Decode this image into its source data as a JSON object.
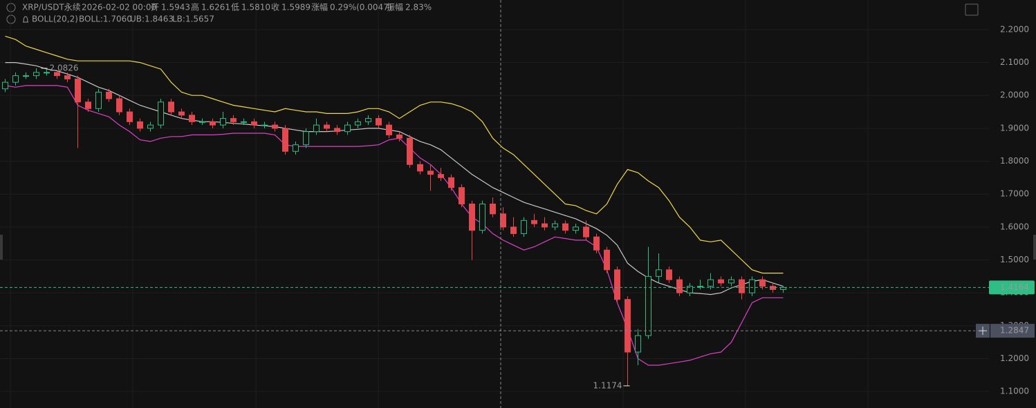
{
  "chart_data": {
    "type": "candlestick",
    "header": {
      "symbol": "XRP/USDT永续",
      "time": "2026-02-02 00:00",
      "fields": [
        {
          "label": "开",
          "value": "1.5943"
        },
        {
          "label": "高",
          "value": "1.6261"
        },
        {
          "label": "低",
          "value": "1.5810"
        },
        {
          "label": "收",
          "value": "1.5989"
        },
        {
          "label": "涨幅",
          "value": "0.29%(0.0047)"
        },
        {
          "label": "振幅",
          "value": "2.83%"
        }
      ]
    },
    "legend": {
      "indicator": "BOLL(20,2)",
      "mid": "BOLL:1.7060",
      "upper": "UB:1.8463",
      "lower": "LB:1.5657"
    },
    "up_color": "#2ebd85",
    "down_color": "#e5484f",
    "open": [
      2.02,
      2.04,
      2.06,
      2.06,
      2.07,
      2.07,
      2.06,
      2.05,
      1.98,
      1.96,
      2.01,
      1.99,
      1.95,
      1.92,
      1.9,
      1.91,
      1.98,
      1.95,
      1.94,
      1.92,
      1.92,
      1.91,
      1.93,
      1.92,
      1.92,
      1.91,
      1.91,
      1.9,
      1.83,
      1.85,
      1.89,
      1.91,
      1.9,
      1.89,
      1.91,
      1.92,
      1.93,
      1.91,
      1.88,
      1.87,
      1.79,
      1.77,
      1.76,
      1.75,
      1.72,
      1.67,
      1.59,
      1.67,
      1.64,
      1.6,
      1.58,
      1.62,
      1.61,
      1.6,
      1.61,
      1.59,
      1.6,
      1.57,
      1.53,
      1.47,
      1.38,
      1.22,
      1.27,
      1.45,
      1.47,
      1.44,
      1.4,
      1.42,
      1.42,
      1.44,
      1.43,
      1.44,
      1.4,
      1.44,
      1.42,
      1.41
    ],
    "high": [
      2.05,
      2.07,
      2.07,
      2.0826,
      2.08,
      2.075,
      2.07,
      2.06,
      1.99,
      2.02,
      2.02,
      2.0,
      1.96,
      1.93,
      1.92,
      1.99,
      1.99,
      1.96,
      1.95,
      1.93,
      1.93,
      1.95,
      1.94,
      1.93,
      1.93,
      1.92,
      1.92,
      1.91,
      1.86,
      1.9,
      1.93,
      1.92,
      1.91,
      1.92,
      1.93,
      1.94,
      1.94,
      1.92,
      1.89,
      1.88,
      1.8,
      1.79,
      1.78,
      1.76,
      1.73,
      1.68,
      1.68,
      1.69,
      1.66,
      1.63,
      1.63,
      1.64,
      1.63,
      1.62,
      1.62,
      1.61,
      1.62,
      1.58,
      1.54,
      1.48,
      1.39,
      1.29,
      1.54,
      1.52,
      1.48,
      1.45,
      1.43,
      1.44,
      1.46,
      1.45,
      1.45,
      1.45,
      1.45,
      1.45,
      1.43,
      1.42
    ],
    "low": [
      2.01,
      2.03,
      2.05,
      2.05,
      2.06,
      2.05,
      2.04,
      1.84,
      1.95,
      1.95,
      1.98,
      1.94,
      1.91,
      1.89,
      1.89,
      1.9,
      1.94,
      1.93,
      1.91,
      1.91,
      1.9,
      1.9,
      1.91,
      1.91,
      1.9,
      1.9,
      1.89,
      1.82,
      1.82,
      1.84,
      1.88,
      1.89,
      1.88,
      1.88,
      1.9,
      1.91,
      1.9,
      1.87,
      1.86,
      1.78,
      1.76,
      1.71,
      1.74,
      1.71,
      1.66,
      1.5,
      1.58,
      1.63,
      1.59,
      1.57,
      1.57,
      1.6,
      1.59,
      1.59,
      1.58,
      1.58,
      1.56,
      1.52,
      1.46,
      1.37,
      1.1174,
      1.18,
      1.26,
      1.43,
      1.43,
      1.39,
      1.39,
      1.41,
      1.41,
      1.42,
      1.42,
      1.38,
      1.39,
      1.41,
      1.4,
      1.4
    ],
    "close": [
      2.04,
      2.06,
      2.06,
      2.07,
      2.07,
      2.06,
      2.05,
      1.98,
      1.96,
      2.01,
      1.99,
      1.95,
      1.92,
      1.9,
      1.91,
      1.98,
      1.95,
      1.94,
      1.92,
      1.92,
      1.91,
      1.93,
      1.92,
      1.92,
      1.91,
      1.91,
      1.9,
      1.83,
      1.85,
      1.89,
      1.91,
      1.9,
      1.89,
      1.91,
      1.92,
      1.93,
      1.91,
      1.88,
      1.87,
      1.79,
      1.77,
      1.76,
      1.75,
      1.72,
      1.67,
      1.59,
      1.67,
      1.64,
      1.6,
      1.58,
      1.62,
      1.61,
      1.6,
      1.61,
      1.59,
      1.6,
      1.57,
      1.53,
      1.47,
      1.38,
      1.22,
      1.27,
      1.45,
      1.47,
      1.44,
      1.4,
      1.42,
      1.42,
      1.44,
      1.43,
      1.44,
      1.4,
      1.44,
      1.42,
      1.41,
      1.4164
    ],
    "bands": [
      {
        "color": "#f0d84a",
        "values": [
          2.18,
          2.17,
          2.15,
          2.14,
          2.13,
          2.12,
          2.11,
          2.105,
          2.105,
          2.105,
          2.105,
          2.105,
          2.105,
          2.1,
          2.09,
          2.08,
          2.04,
          2.01,
          2.0,
          2.0,
          1.99,
          1.98,
          1.97,
          1.965,
          1.96,
          1.955,
          1.95,
          1.96,
          1.955,
          1.95,
          1.95,
          1.945,
          1.945,
          1.945,
          1.95,
          1.96,
          1.96,
          1.95,
          1.93,
          1.95,
          1.97,
          1.98,
          1.98,
          1.975,
          1.965,
          1.95,
          1.92,
          1.87,
          1.84,
          1.82,
          1.79,
          1.76,
          1.73,
          1.7,
          1.67,
          1.665,
          1.65,
          1.64,
          1.67,
          1.73,
          1.775,
          1.765,
          1.74,
          1.72,
          1.68,
          1.63,
          1.6,
          1.56,
          1.555,
          1.56,
          1.53,
          1.5,
          1.47,
          1.46,
          1.46,
          1.46
        ]
      },
      {
        "color": "#c9c9c9",
        "values": [
          2.1,
          2.1,
          2.095,
          2.09,
          2.08,
          2.075,
          2.065,
          2.055,
          2.04,
          2.025,
          2.015,
          2.0,
          1.985,
          1.97,
          1.96,
          1.95,
          1.94,
          1.93,
          1.925,
          1.92,
          1.92,
          1.918,
          1.915,
          1.913,
          1.91,
          1.908,
          1.905,
          1.9,
          1.895,
          1.89,
          1.89,
          1.89,
          1.892,
          1.895,
          1.897,
          1.9,
          1.9,
          1.895,
          1.89,
          1.875,
          1.86,
          1.85,
          1.835,
          1.81,
          1.785,
          1.76,
          1.74,
          1.72,
          1.705,
          1.69,
          1.675,
          1.665,
          1.655,
          1.645,
          1.635,
          1.625,
          1.61,
          1.595,
          1.575,
          1.545,
          1.49,
          1.465,
          1.445,
          1.43,
          1.42,
          1.41,
          1.4,
          1.398,
          1.395,
          1.4,
          1.415,
          1.425,
          1.435,
          1.44,
          1.43,
          1.42
        ]
      },
      {
        "color": "#e040c8",
        "values": [
          2.03,
          2.025,
          2.03,
          2.03,
          2.03,
          2.03,
          2.025,
          1.97,
          1.955,
          1.945,
          1.935,
          1.91,
          1.89,
          1.865,
          1.86,
          1.87,
          1.875,
          1.875,
          1.88,
          1.88,
          1.88,
          1.882,
          1.885,
          1.885,
          1.885,
          1.885,
          1.88,
          1.85,
          1.845,
          1.845,
          1.845,
          1.845,
          1.845,
          1.845,
          1.845,
          1.847,
          1.85,
          1.865,
          1.87,
          1.84,
          1.81,
          1.79,
          1.76,
          1.72,
          1.67,
          1.63,
          1.61,
          1.58,
          1.56,
          1.545,
          1.53,
          1.54,
          1.555,
          1.57,
          1.565,
          1.56,
          1.56,
          1.54,
          1.47,
          1.37,
          1.29,
          1.2,
          1.18,
          1.18,
          1.185,
          1.19,
          1.195,
          1.205,
          1.215,
          1.22,
          1.25,
          1.31,
          1.37,
          1.385,
          1.385,
          1.385
        ]
      }
    ],
    "crosshair_price": {
      "value": 1.2847,
      "label": "1.2847"
    },
    "ylim": [
      1.05,
      2.29
    ],
    "yticks": [
      {
        "value": 1.1,
        "label": "1.1000"
      },
      {
        "value": 1.2,
        "label": "1.2000"
      },
      {
        "value": 1.3,
        "label": "1.3000"
      },
      {
        "value": 1.4,
        "label": "1.4000"
      },
      {
        "value": 1.5,
        "label": "1.5000"
      },
      {
        "value": 1.6,
        "label": "1.6000"
      },
      {
        "value": 1.7,
        "label": "1.7000"
      },
      {
        "value": 1.8,
        "label": "1.8000"
      },
      {
        "value": 1.9,
        "label": "1.9000"
      },
      {
        "value": 2.0,
        "label": "2.0000"
      },
      {
        "value": 2.1,
        "label": "2.1000"
      },
      {
        "value": 2.2,
        "label": "2.2000"
      }
    ],
    "grid": true
  }
}
